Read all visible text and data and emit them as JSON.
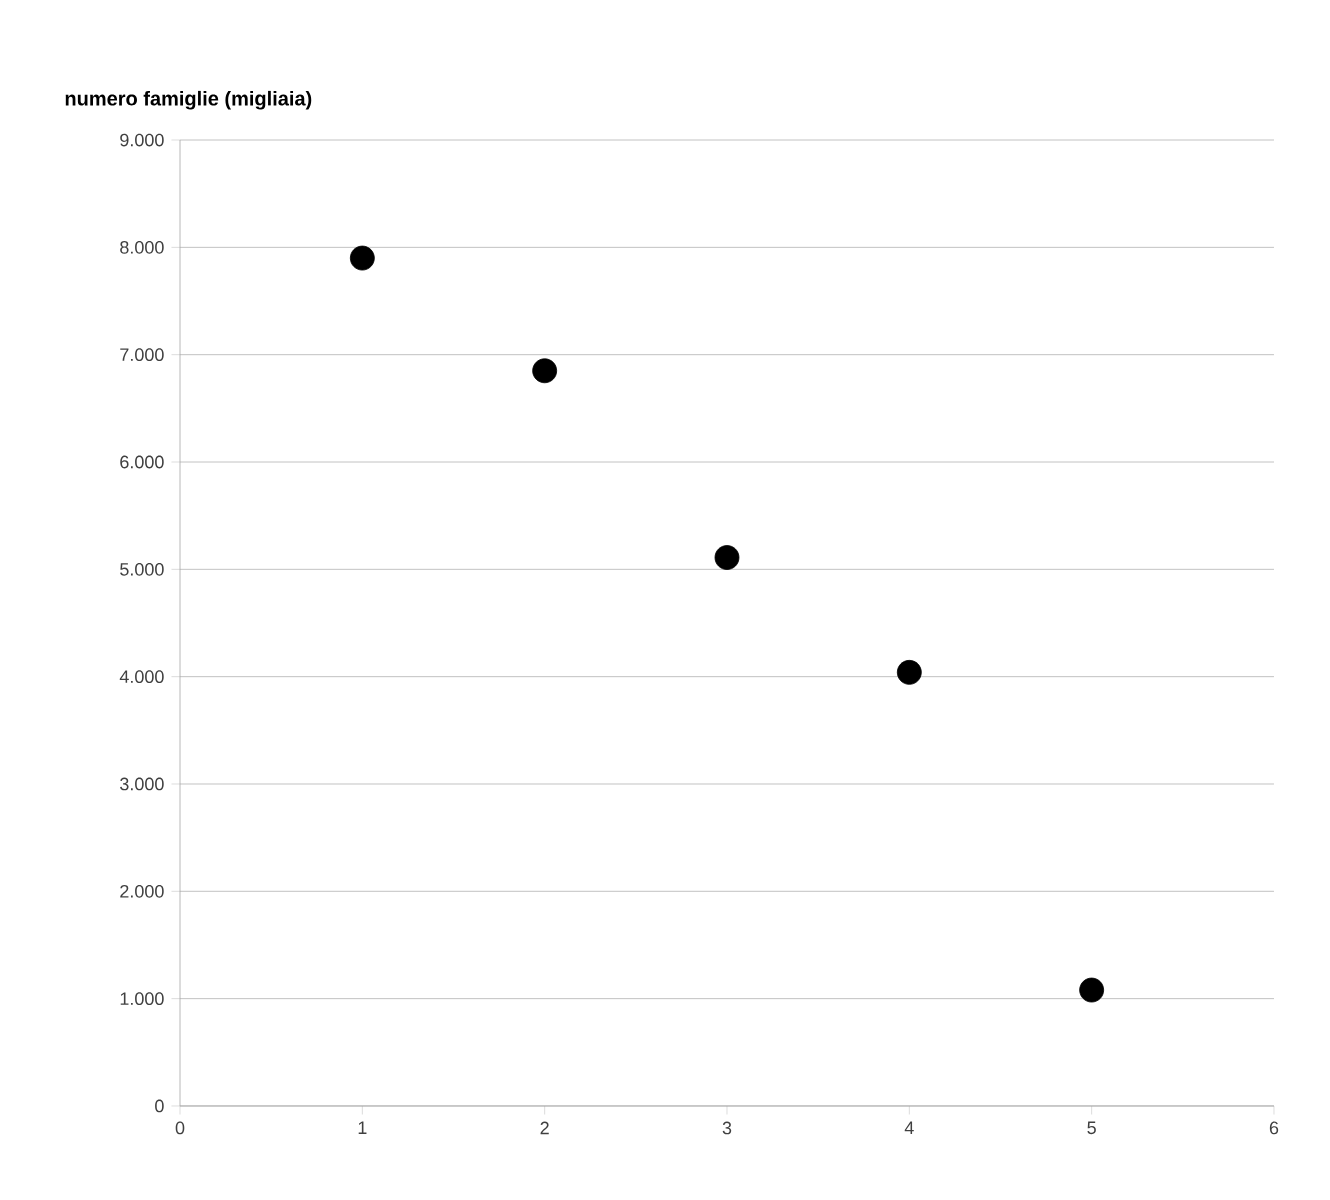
{
  "chart_data": {
    "type": "scatter",
    "ylabel": "numero famiglie (migliaia)",
    "x": [
      1,
      2,
      3,
      4,
      5
    ],
    "series": [
      {
        "color": "#000000",
        "values": [
          7900,
          6850,
          5110,
          4040,
          1080
        ]
      }
    ],
    "xlim": [
      0,
      6
    ],
    "xticks": [
      0,
      1,
      2,
      3,
      4,
      5,
      6
    ],
    "ylim": [
      0,
      9000
    ],
    "yticks": [
      {
        "value": 0,
        "label": "0"
      },
      {
        "value": 1000,
        "label": "1.000"
      },
      {
        "value": 2000,
        "label": "2.000"
      },
      {
        "value": 3000,
        "label": "3.000"
      },
      {
        "value": 4000,
        "label": "4.000"
      },
      {
        "value": 5000,
        "label": "5.000"
      },
      {
        "value": 6000,
        "label": "6.000"
      },
      {
        "value": 7000,
        "label": "7.000"
      },
      {
        "value": 8000,
        "label": "8.000"
      },
      {
        "value": 9000,
        "label": "9.000"
      }
    ],
    "grid": "y",
    "marker": "circle"
  }
}
